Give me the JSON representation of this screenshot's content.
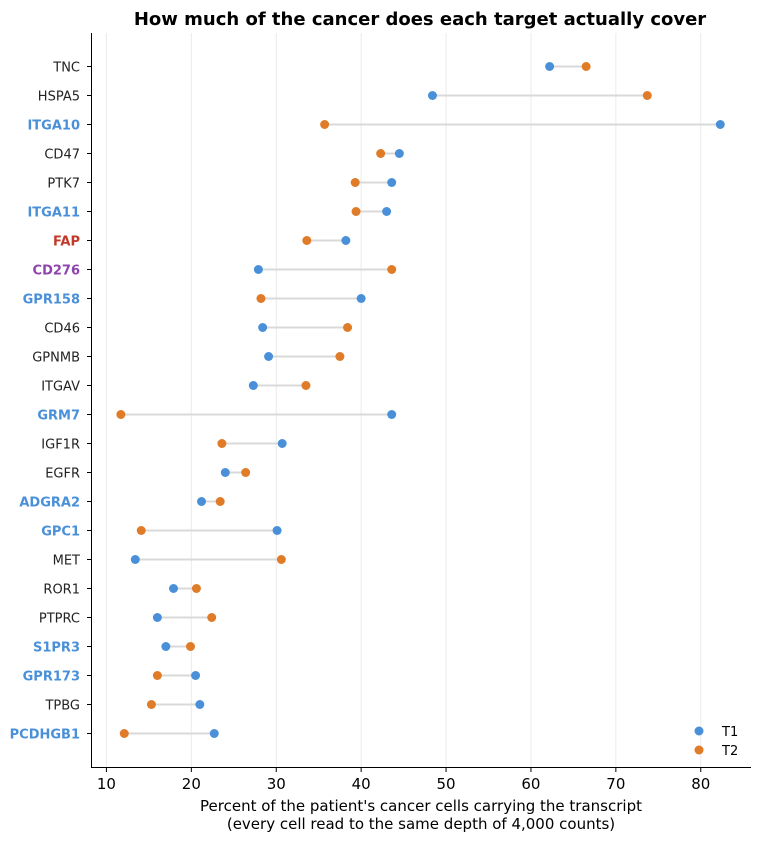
{
  "chart_data": {
    "type": "dumbbell",
    "title": "How much of the cancer does each target actually cover",
    "xlabel_line1": "Percent of the patient's cancer cells carrying the transcript",
    "xlabel_line2": "(every cell read to the same depth of 4,000 counts)",
    "xlim": [
      8.3,
      85.8
    ],
    "xticks": [
      10,
      20,
      30,
      40,
      50,
      60,
      70,
      80
    ],
    "grid": "vertical",
    "legend_position": "bottom-right",
    "series": [
      {
        "name": "T1",
        "color": "#4a90d9"
      },
      {
        "name": "T2",
        "color": "#e07b28"
      }
    ],
    "colors": {
      "default_label": "#222222",
      "blue_label": "#4a90d9",
      "red_label": "#c0392b",
      "purple_label": "#8e44ad",
      "connector": "#d9d9d9",
      "grid": "#ebebeb"
    },
    "rows": [
      {
        "label": "TNC",
        "label_color": "default",
        "t1": 62.2,
        "t2": 66.5
      },
      {
        "label": "HSPA5",
        "label_color": "default",
        "t1": 48.4,
        "t2": 73.7
      },
      {
        "label": "ITGA10",
        "label_color": "blue",
        "t1": 82.3,
        "t2": 35.7
      },
      {
        "label": "CD47",
        "label_color": "default",
        "t1": 44.5,
        "t2": 42.3
      },
      {
        "label": "PTK7",
        "label_color": "default",
        "t1": 43.6,
        "t2": 39.3
      },
      {
        "label": "ITGA11",
        "label_color": "blue",
        "t1": 43.0,
        "t2": 39.4
      },
      {
        "label": "FAP",
        "label_color": "red",
        "t1": 38.2,
        "t2": 33.6
      },
      {
        "label": "CD276",
        "label_color": "purple",
        "t1": 27.9,
        "t2": 43.6
      },
      {
        "label": "GPR158",
        "label_color": "blue",
        "t1": 40.0,
        "t2": 28.2
      },
      {
        "label": "CD46",
        "label_color": "default",
        "t1": 28.4,
        "t2": 38.4
      },
      {
        "label": "GPNMB",
        "label_color": "default",
        "t1": 29.1,
        "t2": 37.5
      },
      {
        "label": "ITGAV",
        "label_color": "default",
        "t1": 27.3,
        "t2": 33.5
      },
      {
        "label": "GRM7",
        "label_color": "blue",
        "t1": 43.6,
        "t2": 11.7
      },
      {
        "label": "IGF1R",
        "label_color": "default",
        "t1": 30.7,
        "t2": 23.6
      },
      {
        "label": "EGFR",
        "label_color": "default",
        "t1": 24.0,
        "t2": 26.4
      },
      {
        "label": "ADGRA2",
        "label_color": "blue",
        "t1": 21.2,
        "t2": 23.4
      },
      {
        "label": "GPC1",
        "label_color": "blue",
        "t1": 30.1,
        "t2": 14.1
      },
      {
        "label": "MET",
        "label_color": "default",
        "t1": 13.4,
        "t2": 30.6
      },
      {
        "label": "ROR1",
        "label_color": "default",
        "t1": 17.9,
        "t2": 20.6
      },
      {
        "label": "PTPRC",
        "label_color": "default",
        "t1": 16.0,
        "t2": 22.4
      },
      {
        "label": "S1PR3",
        "label_color": "blue",
        "t1": 17.0,
        "t2": 19.9
      },
      {
        "label": "GPR173",
        "label_color": "blue",
        "t1": 20.5,
        "t2": 16.0
      },
      {
        "label": "TPBG",
        "label_color": "default",
        "t1": 21.0,
        "t2": 15.3
      },
      {
        "label": "PCDHGB1",
        "label_color": "blue",
        "t1": 22.7,
        "t2": 12.1
      }
    ]
  }
}
